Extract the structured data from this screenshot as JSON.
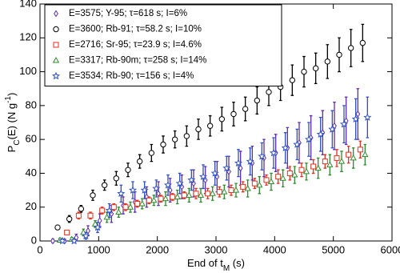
{
  "chart_data": {
    "type": "scatter",
    "xlabel": [
      {
        "text": "End of t",
        "shift": "base"
      },
      {
        "text": "M",
        "shift": "sub"
      },
      {
        "text": " (s)",
        "shift": "base"
      }
    ],
    "ylabel": [
      {
        "text": "P",
        "shift": "base"
      },
      {
        "text": "C",
        "shift": "sub"
      },
      {
        "text": "(E) (N g",
        "shift": "base"
      },
      {
        "text": "-1",
        "shift": "sup"
      },
      {
        "text": ")",
        "shift": "base"
      }
    ],
    "xlim": [
      0,
      6000
    ],
    "xticks": [
      0,
      1000,
      2000,
      3000,
      4000,
      5000,
      6000
    ],
    "ylim": [
      0,
      140
    ],
    "yticks": [
      0,
      20,
      40,
      60,
      80,
      100,
      120,
      140
    ],
    "legend": "upper-left",
    "x": [
      300,
      500,
      700,
      900,
      1100,
      1300,
      1500,
      1700,
      1900,
      2100,
      2300,
      2500,
      2700,
      2900,
      3100,
      3300,
      3500,
      3700,
      3900,
      4100,
      4300,
      4500,
      4700,
      4900,
      5100,
      5300,
      5500
    ],
    "series": [
      {
        "name": "E=3575; Y-95; τ=618 s; I=6%",
        "marker": "diamond",
        "color": "#5b2fa8",
        "values": [
          0,
          0,
          2,
          6,
          12,
          16,
          21,
          23,
          26,
          28,
          30,
          32,
          34,
          36,
          38,
          41,
          43,
          46,
          49,
          52,
          55,
          58,
          61,
          64,
          68,
          71,
          75
        ],
        "errors": [
          1,
          1,
          2,
          3,
          4,
          5,
          5,
          6,
          6,
          7,
          7,
          7,
          8,
          8,
          9,
          9,
          10,
          10,
          11,
          11,
          12,
          12,
          13,
          13,
          14,
          14,
          15
        ]
      },
      {
        "name": "E=3600; Rb-91; τ=58.2 s; I=10%",
        "marker": "circle",
        "color": "#000000",
        "values": [
          8,
          13,
          19,
          27,
          33,
          37,
          42,
          47,
          52,
          57,
          60,
          62,
          66,
          68,
          72,
          75,
          78,
          83,
          88,
          91,
          95,
          100,
          102,
          106,
          110,
          114,
          117
        ],
        "errors": [
          1,
          2,
          2,
          3,
          3,
          4,
          4,
          4,
          5,
          5,
          5,
          6,
          6,
          6,
          7,
          7,
          7,
          8,
          8,
          8,
          9,
          9,
          9,
          10,
          10,
          11,
          11
        ]
      },
      {
        "name": "E=2716; Sr-95; τ=23.9 s; I=4.6%",
        "marker": "square",
        "color": "#e0301e",
        "values": [
          null,
          5,
          15,
          15,
          18,
          20,
          20,
          22,
          24,
          25,
          26,
          27,
          28,
          28,
          29,
          30,
          32,
          34,
          36,
          38,
          40,
          42,
          44,
          47,
          49,
          51,
          54
        ],
        "errors": [
          null,
          1,
          2,
          2,
          2,
          2,
          2,
          2,
          2,
          2,
          2,
          2,
          3,
          3,
          3,
          3,
          3,
          3,
          3,
          4,
          4,
          4,
          4,
          4,
          5,
          5,
          5
        ]
      },
      {
        "name": "E=3317; Rb-90m; τ=258 s; I=14%",
        "marker": "triangle",
        "color": "#2e8b2e",
        "values": [
          0.5,
          1,
          5,
          10,
          14,
          17,
          20,
          22,
          24,
          25,
          26,
          27,
          27,
          28,
          29,
          30,
          31,
          33,
          35,
          37,
          39,
          41,
          43,
          45,
          47,
          49,
          51
        ],
        "errors": [
          1,
          1,
          2,
          2,
          3,
          3,
          3,
          3,
          3,
          4,
          4,
          4,
          4,
          4,
          4,
          4,
          5,
          5,
          5,
          5,
          5,
          5,
          6,
          6,
          6,
          6,
          6
        ]
      },
      {
        "name": "E=3534; Rb-90; τ=156 s; I=4%",
        "marker": "star",
        "color": "#3050c0",
        "values": [
          0,
          0,
          3,
          8,
          18,
          28,
          30,
          30,
          31,
          33,
          34,
          36,
          38,
          40,
          43,
          46,
          47,
          50,
          52,
          55,
          57,
          60,
          63,
          66,
          69,
          72,
          73
        ],
        "errors": [
          1,
          1,
          2,
          3,
          4,
          5,
          5,
          5,
          5,
          6,
          6,
          6,
          7,
          7,
          7,
          8,
          8,
          8,
          9,
          9,
          9,
          10,
          10,
          11,
          11,
          12,
          12
        ]
      }
    ]
  }
}
